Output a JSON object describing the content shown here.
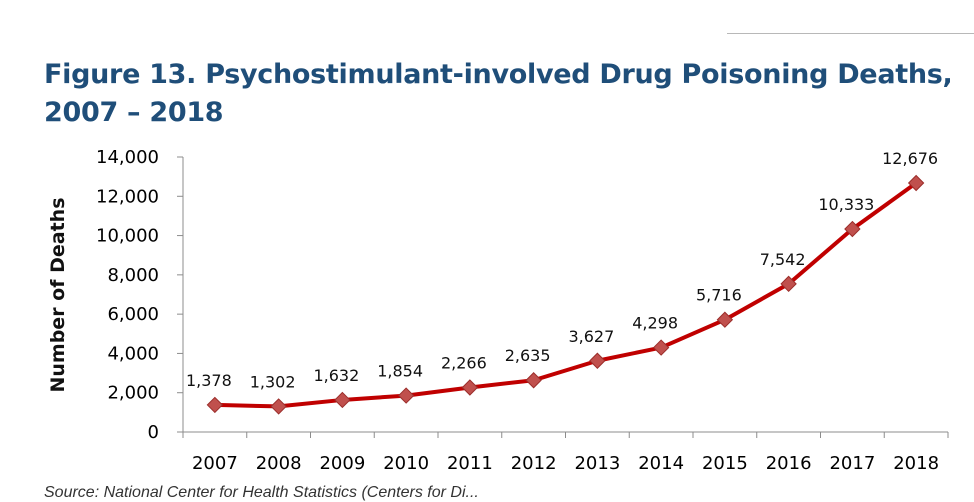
{
  "title_line1": "Figure 13. Psychostimulant-involved Drug Poisoning Deaths,",
  "title_line2": "2007 – 2018",
  "source_text": "Source: National Center for Health Statistics (Centers for Di...",
  "chart_data": {
    "type": "line",
    "title": "Figure 13. Psychostimulant-involved Drug Poisoning Deaths, 2007 – 2018",
    "xlabel": "",
    "ylabel": "Number of Deaths",
    "ylim": [
      0,
      14000
    ],
    "yticks": [
      0,
      2000,
      4000,
      6000,
      8000,
      10000,
      12000,
      14000
    ],
    "ytick_labels": [
      "0",
      "2,000",
      "4,000",
      "6,000",
      "8,000",
      "10,000",
      "12,000",
      "14,000"
    ],
    "categories": [
      "2007",
      "2008",
      "2009",
      "2010",
      "2011",
      "2012",
      "2013",
      "2014",
      "2015",
      "2016",
      "2017",
      "2018"
    ],
    "series": [
      {
        "values": [
          1378,
          1302,
          1632,
          1854,
          2266,
          2635,
          3627,
          4298,
          5716,
          7542,
          10333,
          12676
        ],
        "labels": [
          "1,378",
          "1,302",
          "1,632",
          "1,854",
          "2,266",
          "2,635",
          "3,627",
          "4,298",
          "5,716",
          "7,542",
          "10,333",
          "12,676"
        ]
      }
    ],
    "line_color": "#c00000",
    "marker_color": "#c0504d",
    "marker": "diamond",
    "grid": false,
    "legend": "none"
  }
}
